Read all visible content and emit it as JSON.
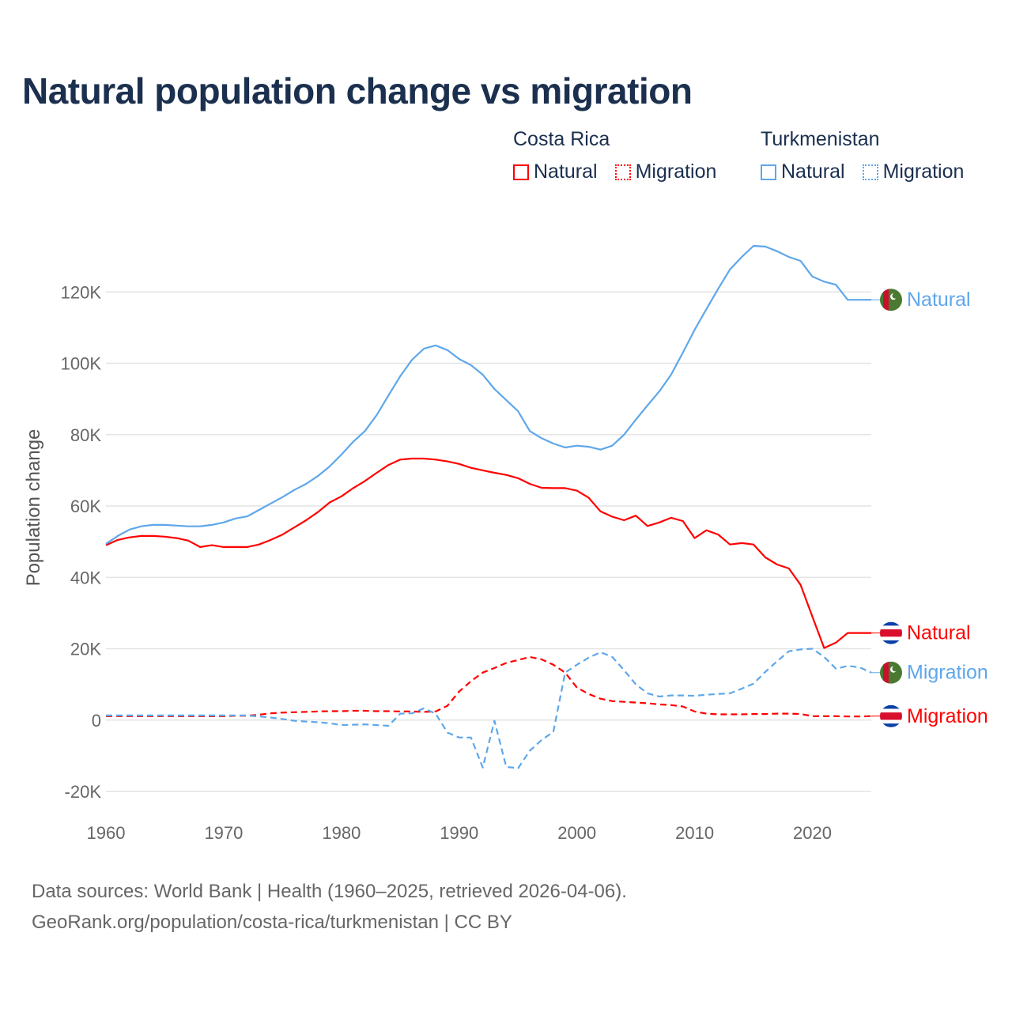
{
  "title": "Natural population change vs migration",
  "legend": [
    {
      "group": "Costa Rica",
      "items": [
        {
          "label": "Natural",
          "style": "solid"
        },
        {
          "label": "Migration",
          "style": "dotted"
        }
      ],
      "color": "#ff0000"
    },
    {
      "group": "Turkmenistan",
      "items": [
        {
          "label": "Natural",
          "style": "solid"
        },
        {
          "label": "Migration",
          "style": "dotted"
        }
      ],
      "color": "#5ea7ea"
    }
  ],
  "footer": {
    "line1": "Data sources: World Bank | Health (1960–2025, retrieved 2026-04-06).",
    "line2": "GeoRank.org/population/costa-rica/turkmenistan | CC BY"
  },
  "chart_data": {
    "type": "line",
    "title": "Natural population change vs migration",
    "xlabel": "",
    "ylabel": "Population change",
    "xlim": [
      1960,
      2025
    ],
    "ylim": [
      -20000,
      140000
    ],
    "x_ticks": [
      1960,
      1970,
      1980,
      1990,
      2000,
      2010,
      2020
    ],
    "x_tick_labels": [
      "1960",
      "1970",
      "1980",
      "1990",
      "2000",
      "2010",
      "2020"
    ],
    "y_ticks": [
      -20000,
      0,
      20000,
      40000,
      60000,
      80000,
      100000,
      120000
    ],
    "y_tick_labels": [
      "-20K",
      "0",
      "20K",
      "40K",
      "60K",
      "80K",
      "100K",
      "120K"
    ],
    "grid": true,
    "legend_position": "top-right",
    "x_start": 1960,
    "series": [
      {
        "name": "Costa Rica Natural",
        "end_label": "Natural",
        "country": "Costa Rica",
        "color": "#ff0000",
        "dash": "solid",
        "values": [
          49000,
          50500,
          51200,
          51600,
          51600,
          51400,
          51000,
          50300,
          48500,
          49000,
          48500,
          48500,
          48500,
          49200,
          50500,
          52000,
          54000,
          56000,
          58300,
          61000,
          62700,
          65000,
          67000,
          69300,
          71500,
          73000,
          73300,
          73300,
          73000,
          72500,
          71800,
          70700,
          70000,
          69300,
          68700,
          67800,
          66200,
          65100,
          65000,
          65000,
          64300,
          62300,
          58500,
          57000,
          56000,
          57300,
          54400,
          55400,
          56700,
          55800,
          51000,
          53200,
          52000,
          49200,
          49600,
          49200,
          45600,
          43600,
          42500,
          37900,
          29000,
          20200,
          21700,
          24400,
          24400,
          24400
        ]
      },
      {
        "name": "Turkmenistan Natural",
        "end_label": "Natural",
        "country": "Turkmenistan",
        "color": "#5ea7ea",
        "dash": "solid",
        "values": [
          49400,
          51600,
          53400,
          54300,
          54700,
          54700,
          54500,
          54300,
          54300,
          54700,
          55400,
          56500,
          57100,
          58900,
          60700,
          62500,
          64500,
          66200,
          68400,
          71100,
          74400,
          78000,
          81000,
          85500,
          91000,
          96400,
          101000,
          104100,
          105000,
          103700,
          101200,
          99500,
          96800,
          92800,
          89700,
          86600,
          81000,
          79000,
          77500,
          76400,
          76900,
          76600,
          75800,
          76900,
          80000,
          84200,
          88200,
          92100,
          96800,
          103000,
          109400,
          115200,
          120900,
          126300,
          129800,
          132900,
          132700,
          131400,
          129800,
          128700,
          124300,
          122900,
          122000,
          117800,
          117800,
          117800
        ]
      },
      {
        "name": "Costa Rica Migration",
        "end_label": "Migration",
        "country": "Costa Rica",
        "color": "#ff0000",
        "dash": "dashed",
        "values": [
          1100,
          1100,
          1100,
          1100,
          1100,
          1100,
          1100,
          1100,
          1100,
          1100,
          1100,
          1200,
          1200,
          1500,
          1900,
          2100,
          2200,
          2300,
          2400,
          2500,
          2500,
          2600,
          2600,
          2500,
          2500,
          2400,
          2400,
          2300,
          2400,
          4000,
          8000,
          10900,
          13300,
          14600,
          16000,
          16800,
          17700,
          17000,
          15500,
          13300,
          9100,
          7300,
          6000,
          5300,
          5100,
          4900,
          4700,
          4400,
          4200,
          3800,
          2400,
          1800,
          1600,
          1600,
          1600,
          1700,
          1700,
          1800,
          1800,
          1700,
          1100,
          1100,
          1100,
          1000,
          1000,
          1100
        ]
      },
      {
        "name": "Turkmenistan Migration",
        "end_label": "Migration",
        "country": "Turkmenistan",
        "color": "#5ea7ea",
        "dash": "dashed",
        "values": [
          1300,
          1300,
          1300,
          1300,
          1300,
          1300,
          1300,
          1300,
          1300,
          1300,
          1300,
          1300,
          1300,
          1000,
          700,
          300,
          -200,
          -400,
          -600,
          -900,
          -1400,
          -1300,
          -1200,
          -1400,
          -1600,
          1800,
          1900,
          3300,
          1800,
          -3500,
          -4900,
          -4900,
          -13300,
          -200,
          -13100,
          -13500,
          -8600,
          -5600,
          -3300,
          13300,
          15500,
          17500,
          19000,
          17700,
          14000,
          10000,
          7500,
          6600,
          6900,
          6900,
          6800,
          7100,
          7300,
          7500,
          8800,
          10200,
          13500,
          16500,
          19300,
          19800,
          20000,
          17700,
          14400,
          15200,
          14800,
          13300
        ]
      }
    ]
  }
}
